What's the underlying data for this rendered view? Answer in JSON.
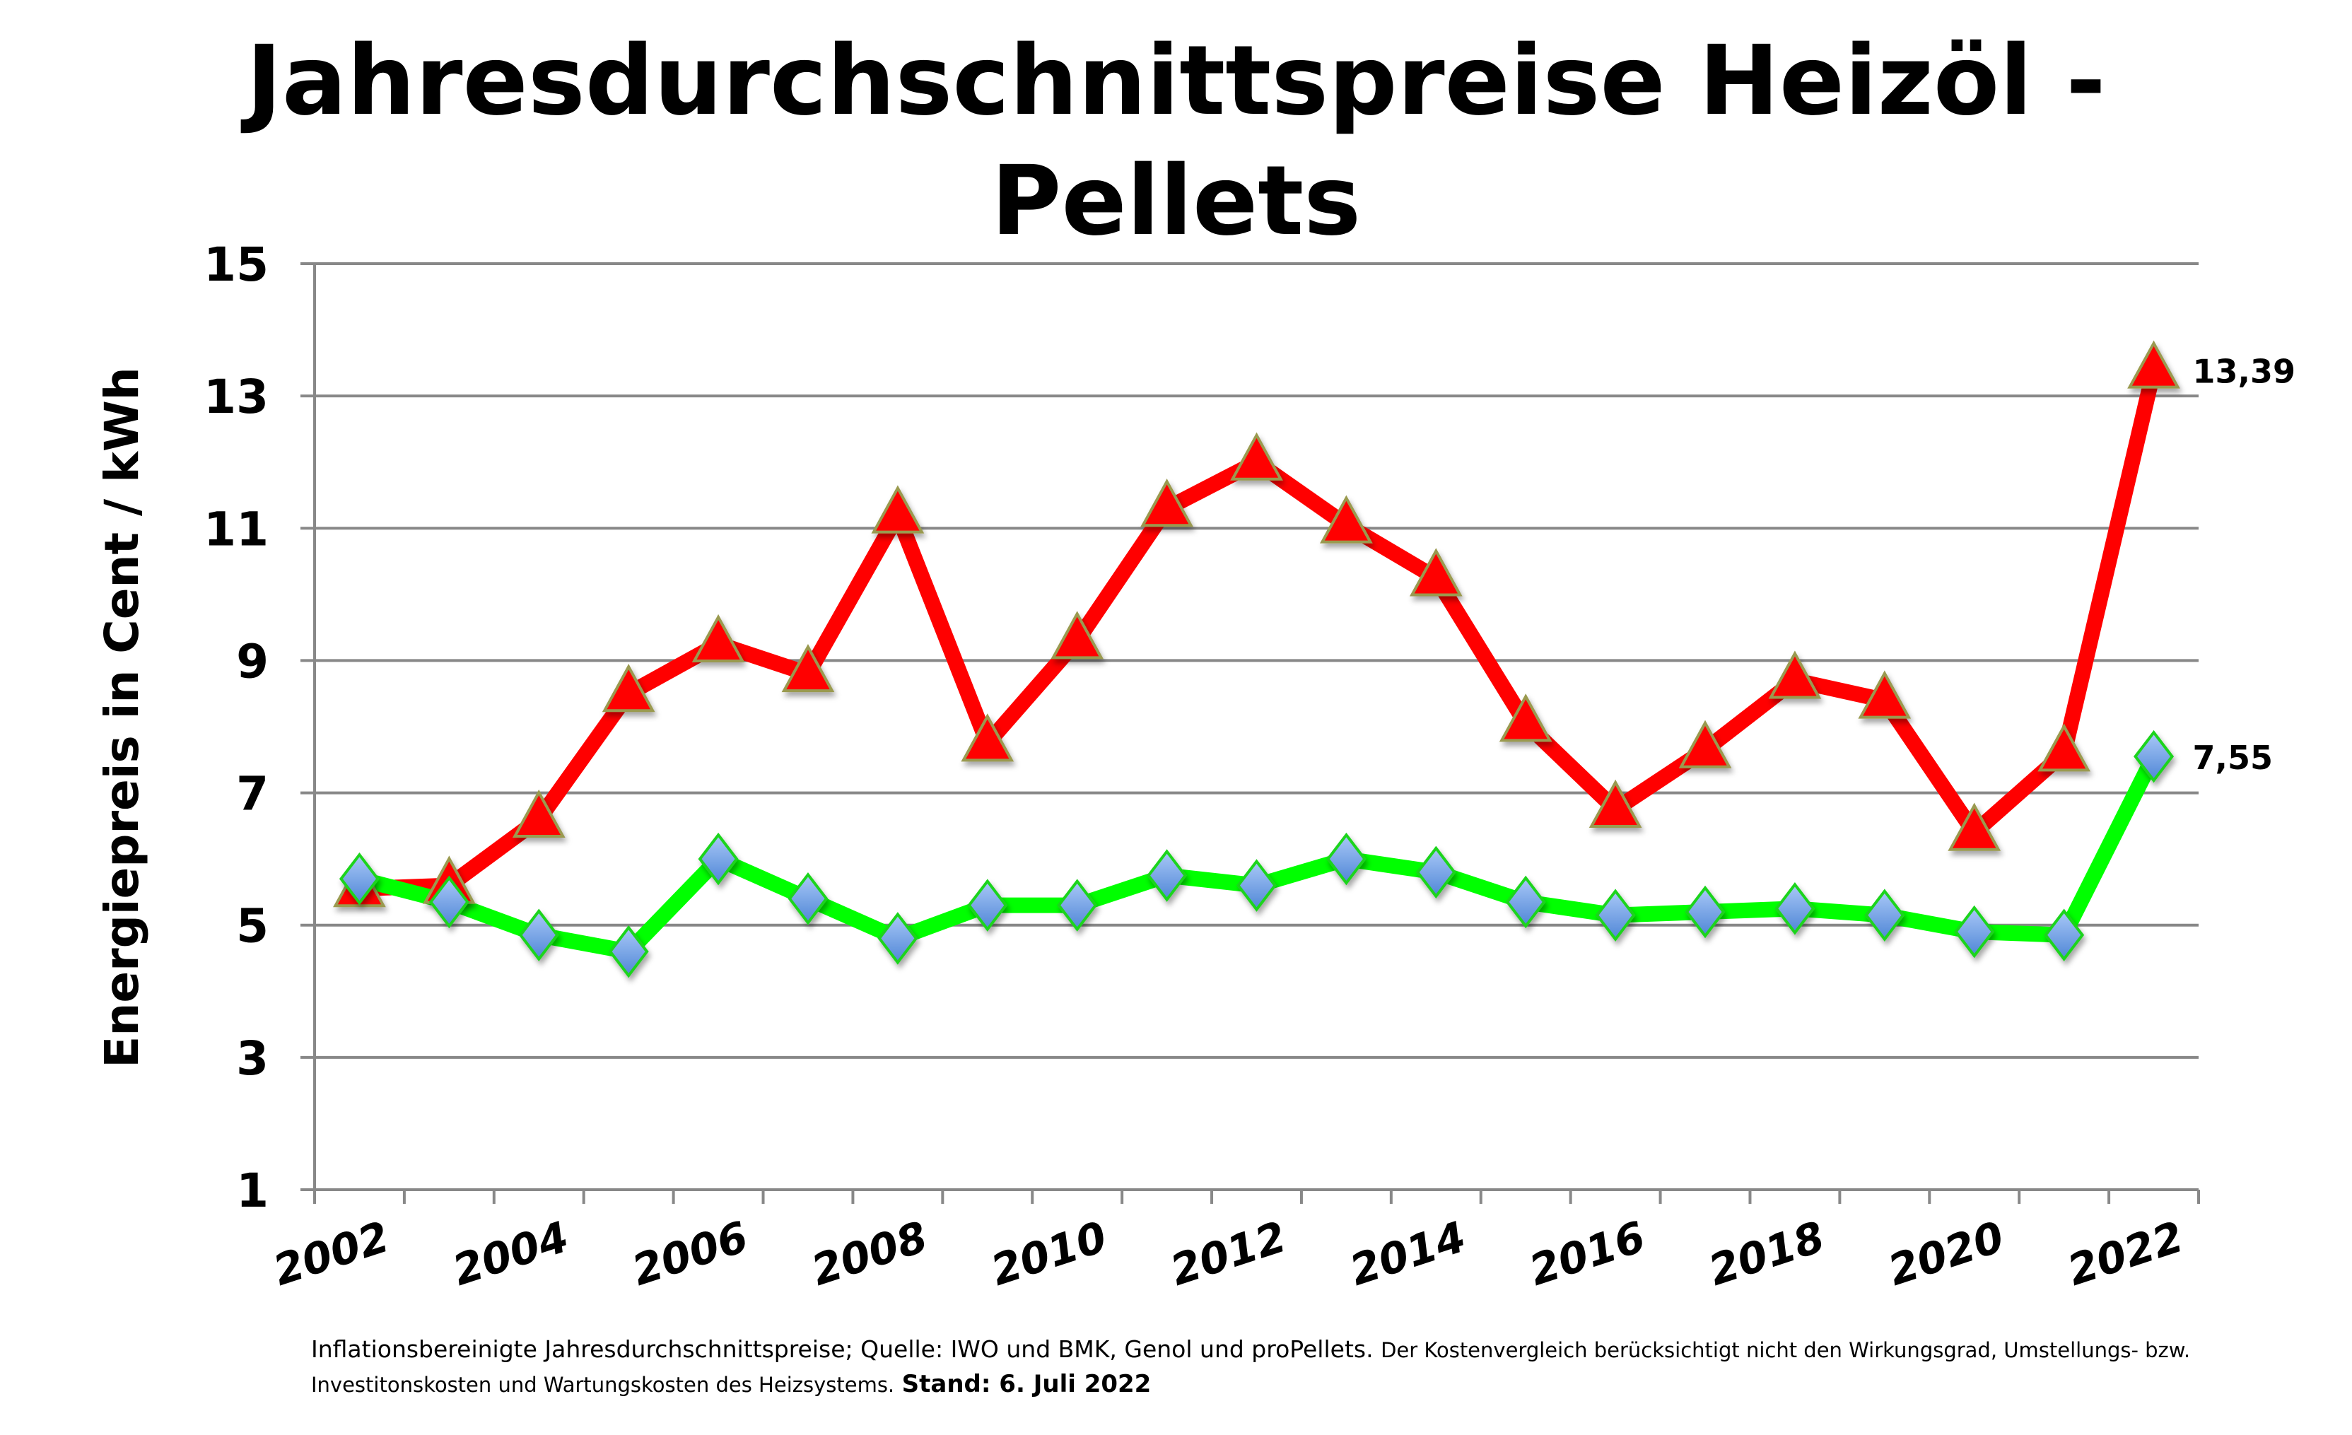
{
  "title": "Jahresdurchschnittspreise Heizöl - Pellets",
  "title_lines": [
    "Jahresdurchschnittspreise Heizöl -",
    "Pellets"
  ],
  "footer": {
    "source": "Inflationsbereinigte Jahresdurchschnittspreise; Quelle: IWO und BMK, Genol und proPellets.",
    "note": "Der Kostenvergleich berücksichtigt nicht den Wirkungsgrad, Umstellungs- bzw. Investitonskosten und Wartungskosten des Heizsystems.",
    "stand": "Stand: 6. Juli 2022"
  },
  "colors": {
    "heizoel": "#ff0000",
    "pellets": "#00ff00",
    "marker_diamond": "#8ab4f0",
    "grid": "#888888"
  },
  "chart_data": {
    "type": "line",
    "title": "Jahresdurchschnittspreise Heizöl - Pellets",
    "xlabel": "",
    "ylabel": "Energiepreis in Cent / kWh",
    "ylim": [
      1,
      15
    ],
    "yticks": [
      1,
      3,
      5,
      7,
      9,
      11,
      13,
      15
    ],
    "xtick_labels": [
      "2002",
      "2004",
      "2006",
      "2008",
      "2010",
      "2012",
      "2014",
      "2016",
      "2018",
      "2020",
      "2022"
    ],
    "grid": true,
    "legend": "none",
    "x": [
      2002,
      2003,
      2004,
      2005,
      2006,
      2007,
      2008,
      2009,
      2010,
      2011,
      2012,
      2013,
      2014,
      2015,
      2016,
      2017,
      2018,
      2019,
      2020,
      2021,
      2022
    ],
    "series": [
      {
        "name": "Heizöl",
        "color": "#ff0000",
        "marker": "triangle",
        "values": [
          5.55,
          5.6,
          6.6,
          8.5,
          9.25,
          8.8,
          11.2,
          7.75,
          9.3,
          11.3,
          12.0,
          11.05,
          10.25,
          8.05,
          6.75,
          7.65,
          8.7,
          8.4,
          6.4,
          7.6,
          13.39
        ]
      },
      {
        "name": "Pellets",
        "color": "#00ff00",
        "marker": "diamond",
        "values": [
          5.7,
          5.35,
          4.85,
          4.6,
          6.0,
          5.4,
          4.8,
          5.3,
          5.3,
          5.75,
          5.6,
          6.0,
          5.8,
          5.35,
          5.15,
          5.2,
          5.25,
          5.15,
          4.9,
          4.85,
          7.55
        ]
      }
    ],
    "annotations": [
      {
        "series": "Heizöl",
        "x": 2022,
        "text": "13,39"
      },
      {
        "series": "Pellets",
        "x": 2022,
        "text": "7,55"
      }
    ]
  }
}
